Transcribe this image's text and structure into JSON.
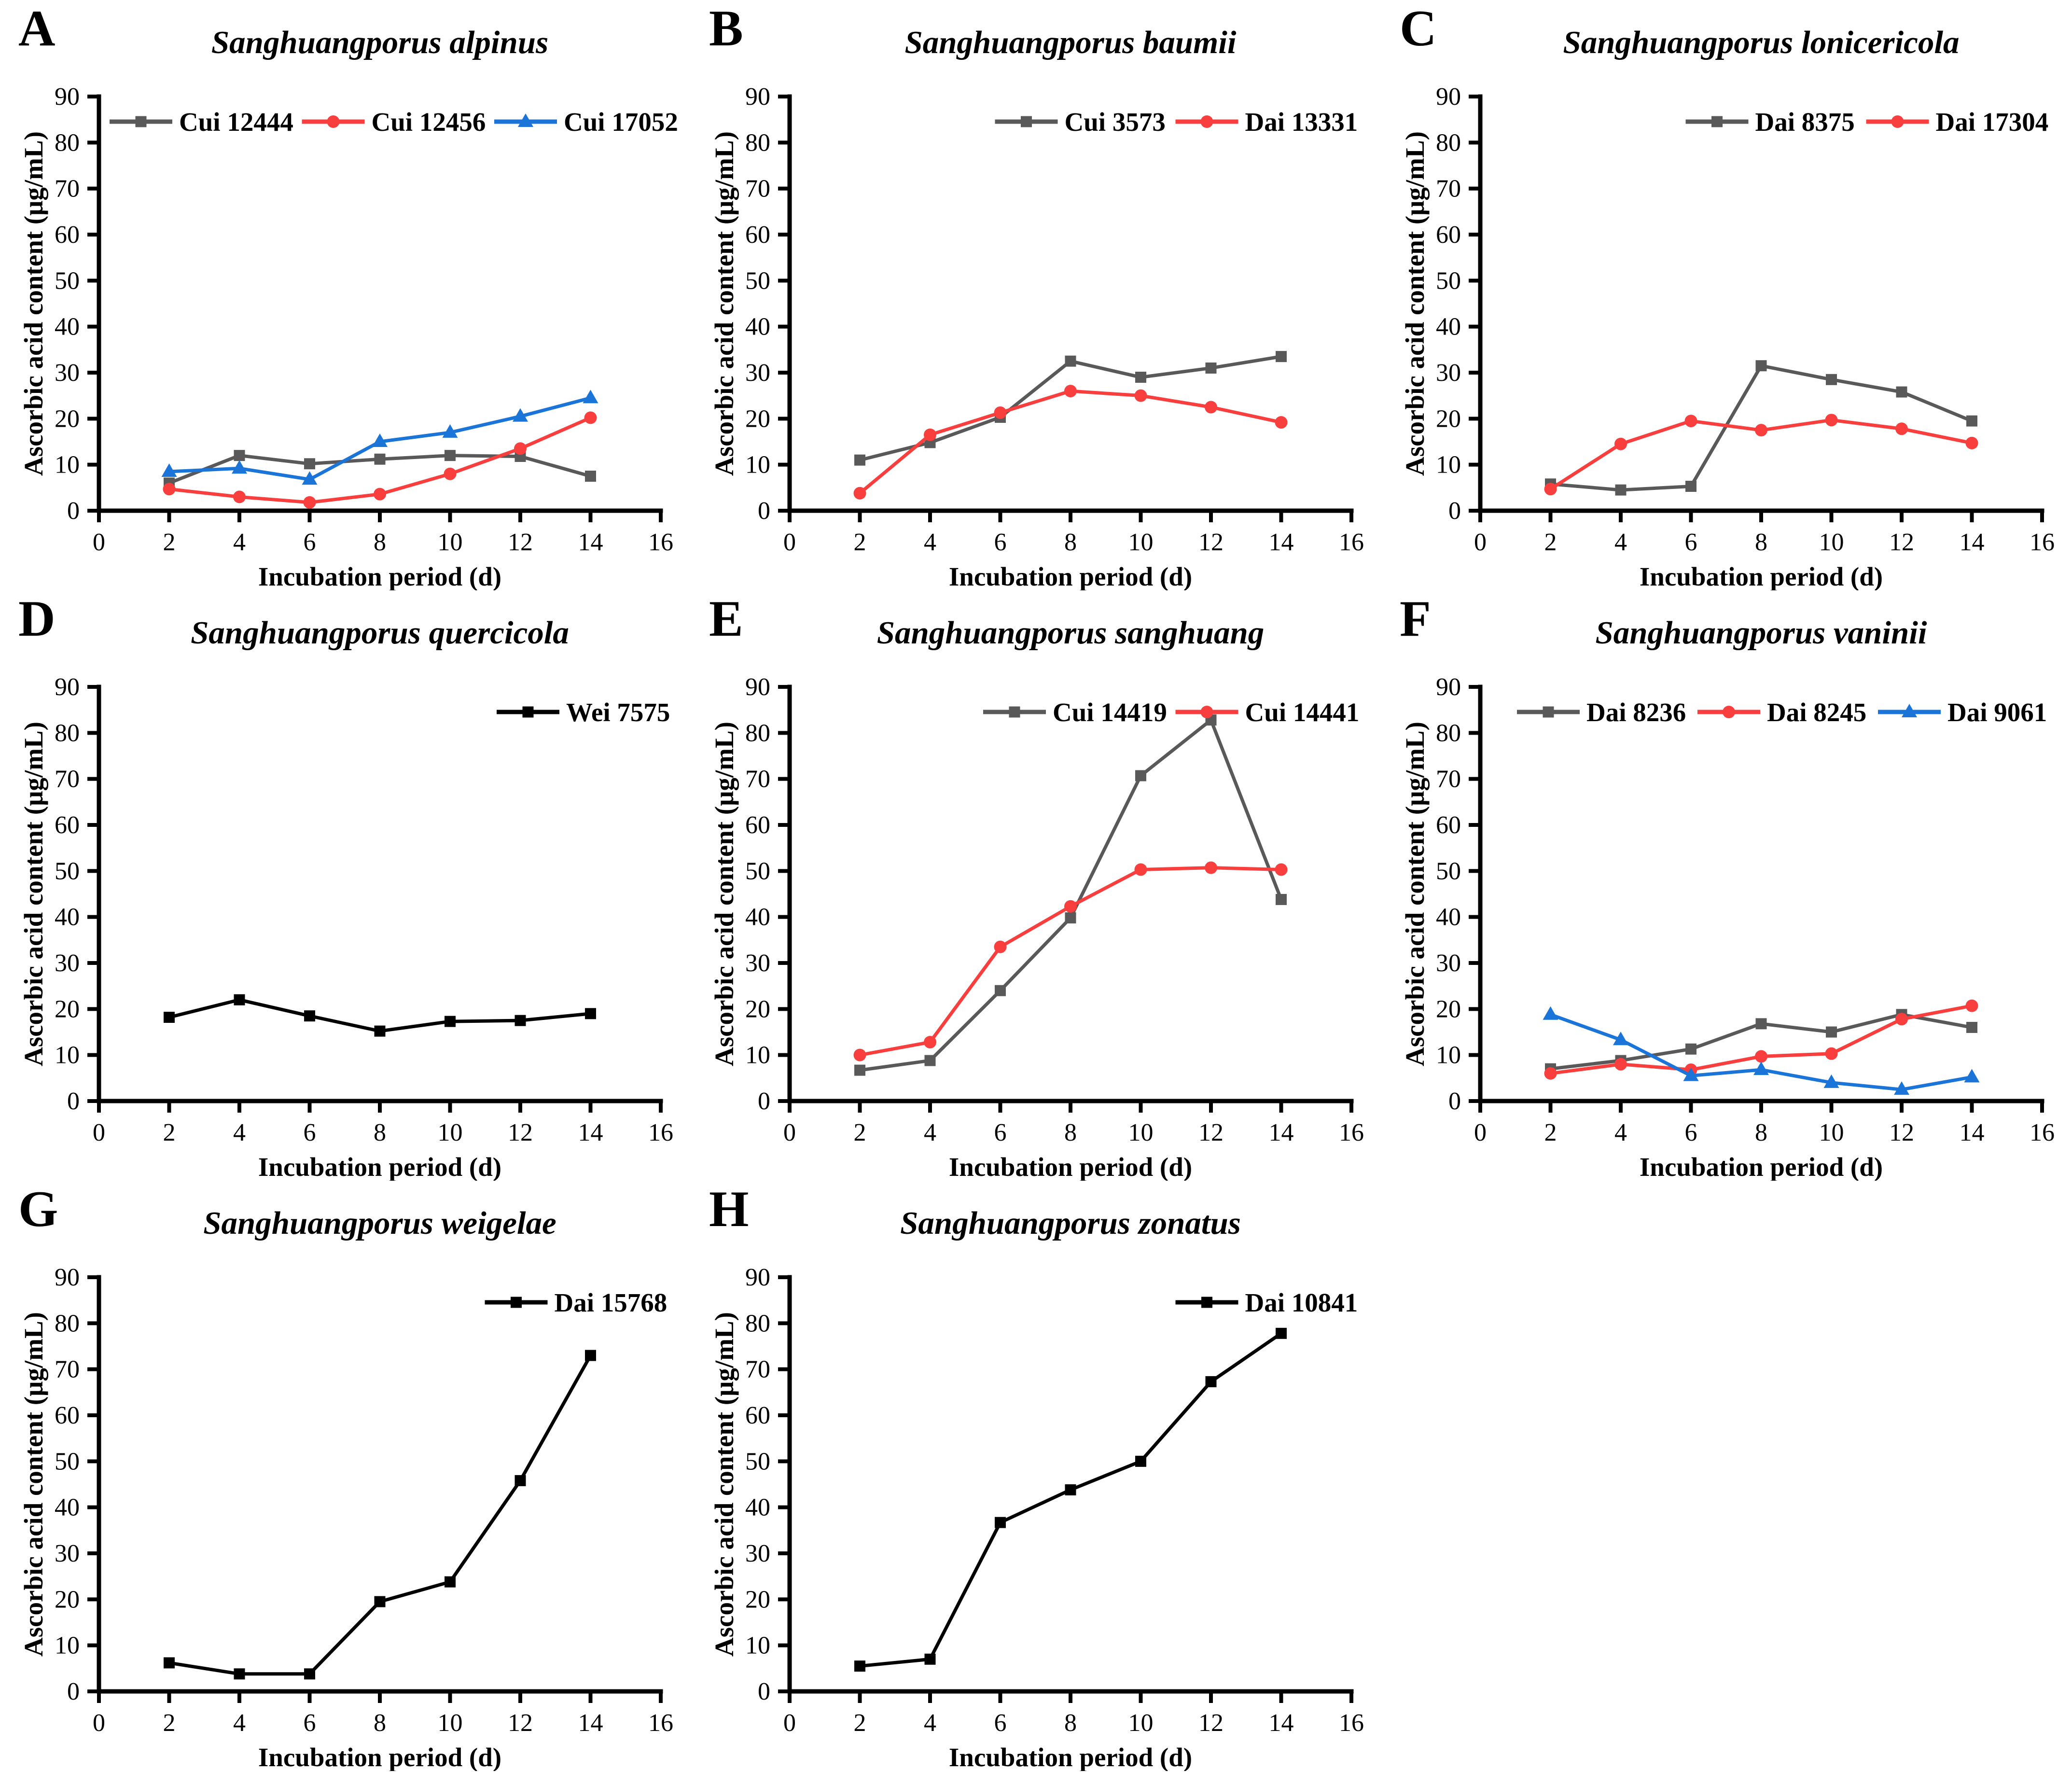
{
  "figure": {
    "xlabel": "Incubation period (d)",
    "ylabel": "Ascorbic acid content (μg/mL)"
  },
  "colors": {
    "gray": "#595959",
    "red": "#F93E3E",
    "blue": "#1B74D8",
    "black": "#000000",
    "axis": "#000000",
    "background": "#ffffff"
  },
  "chart_data": [
    {
      "type": "line",
      "panel": "A",
      "title": "Sanghuangporus alpinus",
      "xlabel": "Incubation period (d)",
      "ylabel": "Ascorbic acid content (μg/mL)",
      "x": [
        2,
        4,
        6,
        8,
        10,
        12,
        14
      ],
      "xlim": [
        0,
        16
      ],
      "ylim": [
        0,
        90
      ],
      "xticks": [
        0,
        2,
        4,
        6,
        8,
        10,
        12,
        14,
        16
      ],
      "yticks": [
        0,
        10,
        20,
        30,
        40,
        50,
        60,
        70,
        80,
        90
      ],
      "grid": false,
      "legend": {
        "align": "left",
        "position": "top-inside"
      },
      "series": [
        {
          "name": "Cui 12444",
          "color": "#595959",
          "marker": "square",
          "values": [
            6,
            12,
            10.2,
            11.2,
            12,
            11.8,
            7.5
          ]
        },
        {
          "name": "Cui 12456",
          "color": "#F93E3E",
          "marker": "circle",
          "values": [
            4.7,
            3,
            1.8,
            3.6,
            8,
            13.5,
            20.2
          ]
        },
        {
          "name": "Cui 17052",
          "color": "#1B74D8",
          "marker": "triangle",
          "values": [
            8.5,
            9.2,
            6.8,
            15,
            17,
            20.5,
            24.5
          ]
        }
      ]
    },
    {
      "type": "line",
      "panel": "B",
      "title": "Sanghuangporus baumii",
      "xlabel": "Incubation period (d)",
      "ylabel": "Ascorbic acid content (μg/mL)",
      "x": [
        2,
        4,
        6,
        8,
        10,
        12,
        14
      ],
      "xlim": [
        0,
        16
      ],
      "ylim": [
        0,
        90
      ],
      "xticks": [
        0,
        2,
        4,
        6,
        8,
        10,
        12,
        14,
        16
      ],
      "yticks": [
        0,
        10,
        20,
        30,
        40,
        50,
        60,
        70,
        80,
        90
      ],
      "grid": false,
      "legend": {
        "align": "right",
        "position": "top-inside"
      },
      "series": [
        {
          "name": "Cui 3573",
          "color": "#595959",
          "marker": "square",
          "values": [
            11,
            14.8,
            20.3,
            32.5,
            29,
            31,
            33.5
          ]
        },
        {
          "name": "Dai 13331",
          "color": "#F93E3E",
          "marker": "circle",
          "values": [
            3.8,
            16.5,
            21.3,
            26,
            25,
            22.5,
            19.2
          ]
        }
      ]
    },
    {
      "type": "line",
      "panel": "C",
      "title": "Sanghuangporus lonicericola",
      "xlabel": "Incubation period (d)",
      "ylabel": "Ascorbic acid content (μg/mL)",
      "x": [
        2,
        4,
        6,
        8,
        10,
        12,
        14
      ],
      "xlim": [
        0,
        16
      ],
      "ylim": [
        0,
        90
      ],
      "xticks": [
        0,
        2,
        4,
        6,
        8,
        10,
        12,
        14,
        16
      ],
      "yticks": [
        0,
        10,
        20,
        30,
        40,
        50,
        60,
        70,
        80,
        90
      ],
      "grid": false,
      "legend": {
        "align": "right",
        "position": "top-inside"
      },
      "series": [
        {
          "name": "Dai 8375",
          "color": "#595959",
          "marker": "square",
          "values": [
            5.8,
            4.5,
            5.3,
            31.5,
            28.5,
            25.8,
            19.5
          ]
        },
        {
          "name": "Dai 17304",
          "color": "#F93E3E",
          "marker": "circle",
          "values": [
            4.7,
            14.5,
            19.5,
            17.5,
            19.7,
            17.8,
            14.7
          ]
        }
      ]
    },
    {
      "type": "line",
      "panel": "D",
      "title": "Sanghuangporus quercicola",
      "xlabel": "Incubation period (d)",
      "ylabel": "Ascorbic acid content (μg/mL)",
      "x": [
        2,
        4,
        6,
        8,
        10,
        12,
        14
      ],
      "xlim": [
        0,
        16
      ],
      "ylim": [
        0,
        90
      ],
      "xticks": [
        0,
        2,
        4,
        6,
        8,
        10,
        12,
        14,
        16
      ],
      "yticks": [
        0,
        10,
        20,
        30,
        40,
        50,
        60,
        70,
        80,
        90
      ],
      "grid": false,
      "legend": {
        "align": "right",
        "position": "top-inside"
      },
      "series": [
        {
          "name": "Wei 7575",
          "color": "#000000",
          "marker": "square",
          "values": [
            18.2,
            22,
            18.5,
            15.2,
            17.3,
            17.5,
            19
          ]
        }
      ]
    },
    {
      "type": "line",
      "panel": "E",
      "title": "Sanghuangporus sanghuang",
      "xlabel": "Incubation period (d)",
      "ylabel": "Ascorbic acid content (μg/mL)",
      "x": [
        2,
        4,
        6,
        8,
        10,
        12,
        14
      ],
      "xlim": [
        0,
        16
      ],
      "ylim": [
        0,
        90
      ],
      "xticks": [
        0,
        2,
        4,
        6,
        8,
        10,
        12,
        14,
        16
      ],
      "yticks": [
        0,
        10,
        20,
        30,
        40,
        50,
        60,
        70,
        80,
        90
      ],
      "grid": false,
      "legend": {
        "align": "right",
        "position": "top-inside"
      },
      "series": [
        {
          "name": "Cui 14419",
          "color": "#595959",
          "marker": "square",
          "values": [
            6.7,
            8.8,
            24,
            39.8,
            70.7,
            82.8,
            43.8
          ]
        },
        {
          "name": "Cui 14441",
          "color": "#F93E3E",
          "marker": "circle",
          "values": [
            10,
            12.8,
            33.5,
            42.3,
            50.3,
            50.7,
            50.3
          ]
        }
      ]
    },
    {
      "type": "line",
      "panel": "F",
      "title": "Sanghuangporus vaninii",
      "xlabel": "Incubation period (d)",
      "ylabel": "Ascorbic acid content (μg/mL)",
      "x": [
        2,
        4,
        6,
        8,
        10,
        12,
        14
      ],
      "xlim": [
        0,
        16
      ],
      "ylim": [
        0,
        90
      ],
      "xticks": [
        0,
        2,
        4,
        6,
        8,
        10,
        12,
        14,
        16
      ],
      "yticks": [
        0,
        10,
        20,
        30,
        40,
        50,
        60,
        70,
        80,
        90
      ],
      "grid": false,
      "legend": {
        "align": "right",
        "position": "top-inside"
      },
      "series": [
        {
          "name": "Dai 8236",
          "color": "#595959",
          "marker": "square",
          "values": [
            7,
            8.8,
            11.3,
            16.8,
            15,
            18.8,
            16
          ]
        },
        {
          "name": "Dai 8245",
          "color": "#F93E3E",
          "marker": "circle",
          "values": [
            6,
            8,
            6.8,
            9.7,
            10.3,
            17.8,
            20.7
          ]
        },
        {
          "name": "Dai 9061",
          "color": "#1B74D8",
          "marker": "triangle",
          "values": [
            18.8,
            13.3,
            5.5,
            6.8,
            4,
            2.5,
            5.2
          ]
        }
      ]
    },
    {
      "type": "line",
      "panel": "G",
      "title": "Sanghuangporus weigelae",
      "xlabel": "Incubation period (d)",
      "ylabel": "Ascorbic acid content (μg/mL)",
      "x": [
        2,
        4,
        6,
        8,
        10,
        12,
        14
      ],
      "xlim": [
        0,
        16
      ],
      "ylim": [
        0,
        90
      ],
      "xticks": [
        0,
        2,
        4,
        6,
        8,
        10,
        12,
        14,
        16
      ],
      "yticks": [
        0,
        10,
        20,
        30,
        40,
        50,
        60,
        70,
        80,
        90
      ],
      "grid": false,
      "legend": {
        "align": "right",
        "position": "top-inside"
      },
      "series": [
        {
          "name": "Dai 15768",
          "color": "#000000",
          "marker": "square",
          "values": [
            6.2,
            3.8,
            3.8,
            19.5,
            23.8,
            45.8,
            73
          ]
        }
      ]
    },
    {
      "type": "line",
      "panel": "H",
      "title": "Sanghuangporus zonatus",
      "xlabel": "Incubation period (d)",
      "ylabel": "Ascorbic acid content (μg/mL)",
      "x": [
        2,
        4,
        6,
        8,
        10,
        12,
        14
      ],
      "xlim": [
        0,
        16
      ],
      "ylim": [
        0,
        90
      ],
      "xticks": [
        0,
        2,
        4,
        6,
        8,
        10,
        12,
        14,
        16
      ],
      "yticks": [
        0,
        10,
        20,
        30,
        40,
        50,
        60,
        70,
        80,
        90
      ],
      "grid": false,
      "legend": {
        "align": "right",
        "position": "top-inside"
      },
      "series": [
        {
          "name": "Dai 10841",
          "color": "#000000",
          "marker": "square",
          "values": [
            5.5,
            7,
            36.7,
            43.8,
            50,
            67.3,
            77.8
          ]
        }
      ]
    }
  ]
}
